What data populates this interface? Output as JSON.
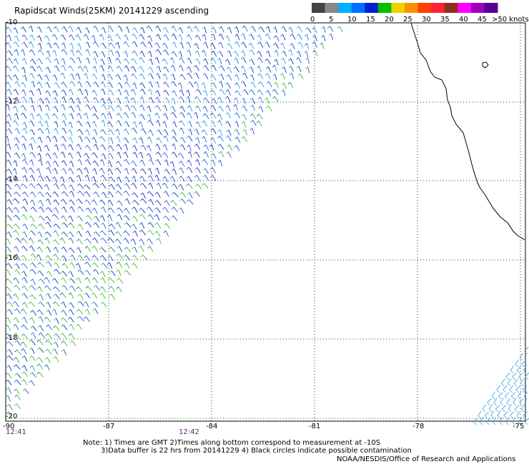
{
  "title": "Rapidscat Winds(25KM) 20141229 ascending",
  "legend": {
    "labels": [
      "0",
      "5",
      "10",
      "15",
      "20",
      "25",
      "30",
      "35",
      "40",
      "45",
      ">50 knots"
    ],
    "colors": [
      "#444444",
      "#888888",
      "#00b0ff",
      "#0070ff",
      "#0020d0",
      "#00c000",
      "#f0d000",
      "#ff9000",
      "#ff4000",
      "#ff2030",
      "#8b3020",
      "#ff00ff",
      "#a000c0",
      "#5a0090"
    ]
  },
  "map": {
    "lat_labels": [
      "-10",
      "-12",
      "-14",
      "-16",
      "-18",
      "-20"
    ],
    "lon_labels": [
      "-90",
      "-87",
      "-84",
      "-81",
      "-78",
      "-75"
    ],
    "times": [
      "12:41",
      "12:42"
    ]
  },
  "notes": {
    "line1": "Note: 1) Times are GMT 2)Times along bottom correspond to measurement at -10S",
    "line2": "3)Data buffer is 22 hrs from 20141229 4) Black circles indicate possible contamination"
  },
  "credit": "NOAA/NESDIS/Office of Research and Applications"
}
